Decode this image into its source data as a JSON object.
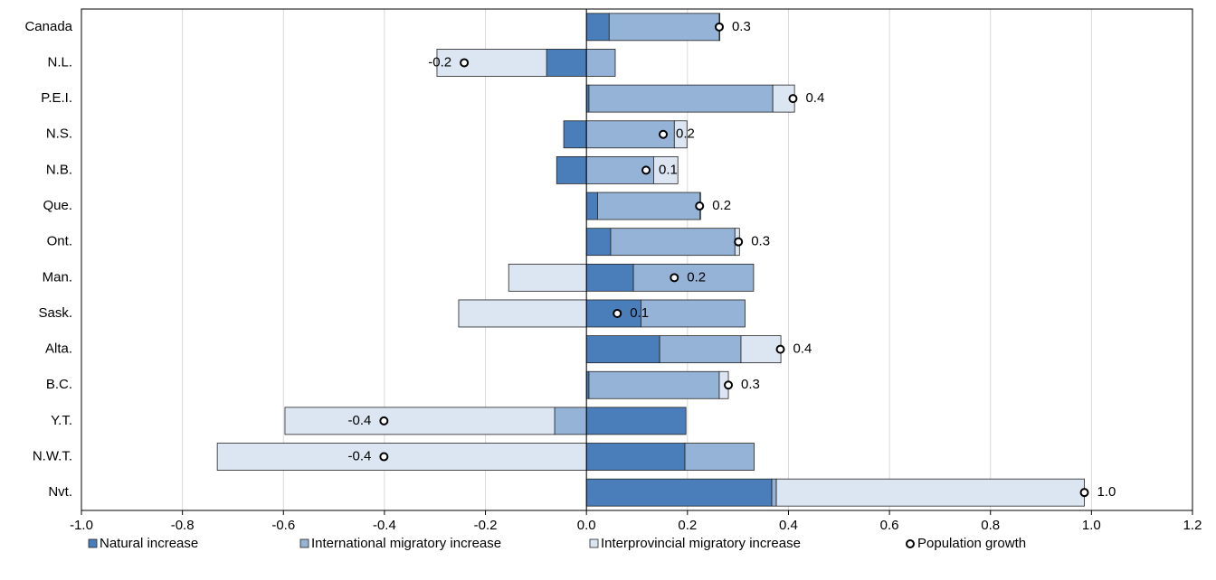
{
  "chart_data": {
    "type": "diverging-stacked-bar",
    "categories": [
      "Canada",
      "N.L.",
      "P.E.I.",
      "N.S.",
      "N.B.",
      "Que.",
      "Ont.",
      "Man.",
      "Sask.",
      "Alta.",
      "B.C.",
      "Y.T.",
      "N.W.T.",
      "Nvt."
    ],
    "series": [
      {
        "name": "Natural increase",
        "color": "#4a7ebb",
        "values": [
          0.045,
          -0.079,
          0.005,
          -0.045,
          -0.059,
          0.022,
          0.048,
          0.093,
          0.108,
          0.145,
          0.005,
          0.197,
          0.195,
          0.367
        ]
      },
      {
        "name": "International migratory increase",
        "color": "#95b3d7",
        "values": [
          0.218,
          0.057,
          0.364,
          0.174,
          0.133,
          0.203,
          0.246,
          0.238,
          0.206,
          0.161,
          0.258,
          -0.063,
          0.137,
          0.009
        ]
      },
      {
        "name": "Interprovincial migratory increase",
        "color": "#dce6f2",
        "values": [
          0.001,
          -0.217,
          0.043,
          0.025,
          0.048,
          0.001,
          0.009,
          -0.154,
          -0.253,
          0.079,
          0.018,
          -0.534,
          -0.731,
          0.61
        ]
      }
    ],
    "points": {
      "name": "Population growth",
      "color": "#ffffff",
      "values": [
        0.263,
        -0.242,
        0.409,
        0.152,
        0.118,
        0.224,
        0.301,
        0.174,
        0.061,
        0.384,
        0.281,
        -0.401,
        -0.401,
        0.986
      ],
      "value_labels": [
        "0.3",
        "-0.2",
        "0.4",
        "0.2",
        "0.1",
        "0.2",
        "0.3",
        "0.2",
        "0.1",
        "0.4",
        "0.3",
        "-0.4",
        "-0.4",
        "1.0"
      ]
    },
    "xlim": [
      -1.0,
      1.2
    ],
    "xticks": [
      {
        "value": -1.0,
        "label": "-1.0"
      },
      -0.8,
      -0.6,
      -0.4,
      -0.2,
      {
        "value": 0.0,
        "label": "0.0"
      },
      0.2,
      0.4,
      0.6,
      0.8,
      {
        "value": 1.0,
        "label": "1.0"
      },
      1.2
    ],
    "grid": true,
    "legend": "bottom"
  }
}
